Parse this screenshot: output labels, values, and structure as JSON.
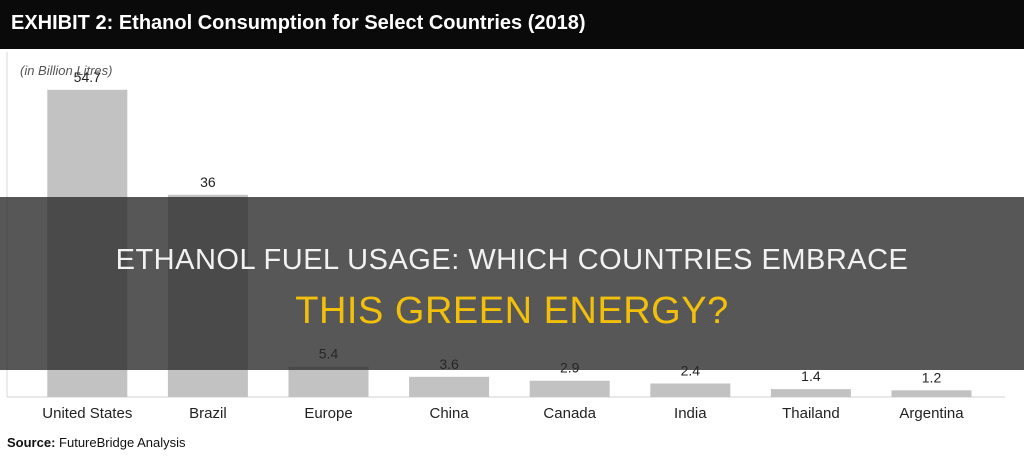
{
  "header": {
    "exhibit": "EXHIBIT 2:",
    "title": "Ethanol Consumption for Select Countries (2018)"
  },
  "unit_label": "(in Billion Litres)",
  "source": {
    "label": "Source:",
    "text": "FutureBridge Analysis"
  },
  "overlay": {
    "line1": "ETHANOL FUEL USAGE: WHICH COUNTRIES EMBRACE",
    "line2": "THIS GREEN ENERGY?"
  },
  "colors": {
    "header_bg": "#0a0a0a",
    "bar": "#c2c2c2",
    "overlay_bg": "#282828",
    "headline_white": "#f2f2f2",
    "headline_accent": "#f2c00a"
  },
  "chart_data": {
    "type": "bar",
    "title": "Ethanol Consumption for Select Countries (2018)",
    "ylabel": "(in Billion Litres)",
    "categories": [
      "United States",
      "Brazil",
      "Europe",
      "China",
      "Canada",
      "India",
      "Thailand",
      "Argentina"
    ],
    "values": [
      54.7,
      36,
      5.4,
      3.6,
      2.9,
      2.4,
      1.4,
      1.2
    ],
    "value_labels": [
      "54.7",
      "36",
      "5.4",
      "3.6",
      "2.9",
      "2.4",
      "1.4",
      "1.2"
    ],
    "ylim": [
      0,
      60
    ],
    "grid": false,
    "legend": "none"
  }
}
